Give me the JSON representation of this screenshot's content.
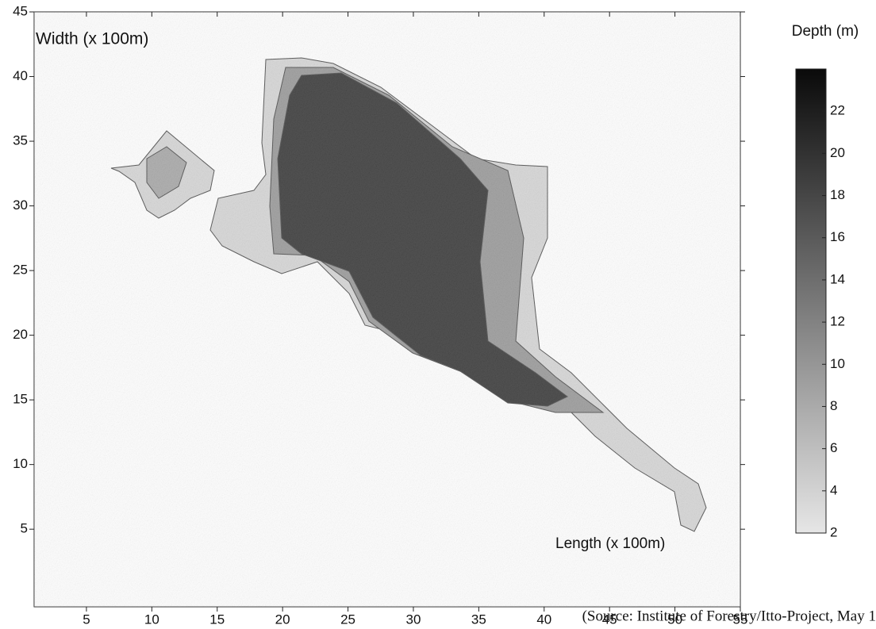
{
  "chart_data": {
    "type": "contour",
    "x_label": "Length (x 100m)",
    "y_label": "Width (x 100m)",
    "xlim": [
      1,
      55
    ],
    "xticks": [
      5,
      10,
      15,
      20,
      25,
      30,
      35,
      40,
      45,
      50,
      55
    ],
    "ylim": [
      -1,
      45
    ],
    "yticks": [
      5,
      10,
      15,
      20,
      25,
      30,
      35,
      40,
      45
    ],
    "colorbar": {
      "title": "Depth (m)",
      "lim": [
        2,
        24
      ],
      "ticks": [
        2,
        4,
        6,
        8,
        10,
        12,
        14,
        16,
        18,
        20,
        22
      ],
      "colors": [
        "#e6e6e6",
        "#0a0a0a"
      ]
    },
    "source": "(Source: Institute of Forestry/Itto-Project, May 1"
  }
}
